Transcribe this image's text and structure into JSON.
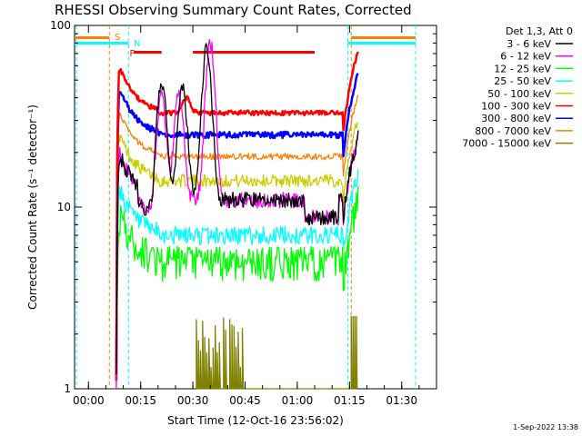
{
  "chart_data": {
    "type": "line",
    "title": "RHESSI Observing Summary Count Rates, Corrected",
    "xlabel": "Start Time (12-Oct-16 23:56:02)",
    "ylabel": "Corrected Count Rate (s⁻¹ detector⁻¹)",
    "y_scale": "log",
    "ylim": [
      1,
      100
    ],
    "y_ticks": [
      "1",
      "10",
      "100"
    ],
    "xlim_minutes": [
      -4,
      100
    ],
    "x_ticks": [
      {
        "label": "00:00",
        "minute": 0
      },
      {
        "label": "00:15",
        "minute": 15
      },
      {
        "label": "00:30",
        "minute": 30
      },
      {
        "label": "00:45",
        "minute": 45
      },
      {
        "label": "01:00",
        "minute": 60
      },
      {
        "label": "01:15",
        "minute": 75
      },
      {
        "label": "01:30",
        "minute": 90
      }
    ],
    "legend_header": "Det 1,3, Att 0",
    "legend_position": "right",
    "series": [
      {
        "name": "3 - 6 keV",
        "color": "#000000",
        "level": 11,
        "peaks": [
          [
            21,
            50
          ],
          [
            27,
            45
          ],
          [
            34,
            75
          ]
        ],
        "noise": 0.1
      },
      {
        "name": "6 - 12 keV",
        "color": "#ff00ff",
        "level": 11,
        "peaks": [
          [
            21,
            40
          ],
          [
            26,
            42
          ],
          [
            35,
            80
          ]
        ],
        "noise": 0.1
      },
      {
        "name": "12 - 25 keV",
        "color": "#00ff00",
        "level": 5,
        "peaks": [],
        "noise": 0.22
      },
      {
        "name": "25 - 50 keV",
        "color": "#00ffff",
        "level": 7,
        "peaks": [],
        "noise": 0.12
      },
      {
        "name": "50 - 100 keV",
        "color": "#cccc00",
        "level": 14,
        "peaks": [],
        "noise": 0.08
      },
      {
        "name": "100 - 300 keV",
        "color": "#ff0000",
        "level": 33,
        "peaks": [
          [
            28,
            40
          ]
        ],
        "noise": 0.03
      },
      {
        "name": "300 - 800 keV",
        "color": "#0000ff",
        "level": 25,
        "peaks": [],
        "noise": 0.04
      },
      {
        "name": "800 - 7000 keV",
        "color": "#ff8000",
        "level": 19,
        "peaks": [],
        "noise": 0.04
      },
      {
        "name": "7000 - 15000 keV",
        "color": "#808000",
        "level": 1,
        "peaks": [],
        "noise": 0.0
      }
    ],
    "flags": [
      {
        "label": "S",
        "color": "#ff8000"
      },
      {
        "label": "N",
        "color": "#00ffff"
      },
      {
        "label": "F",
        "color": "#ff0000"
      }
    ]
  },
  "footer": {
    "date_stamp": "1-Sep-2022 13:38"
  }
}
